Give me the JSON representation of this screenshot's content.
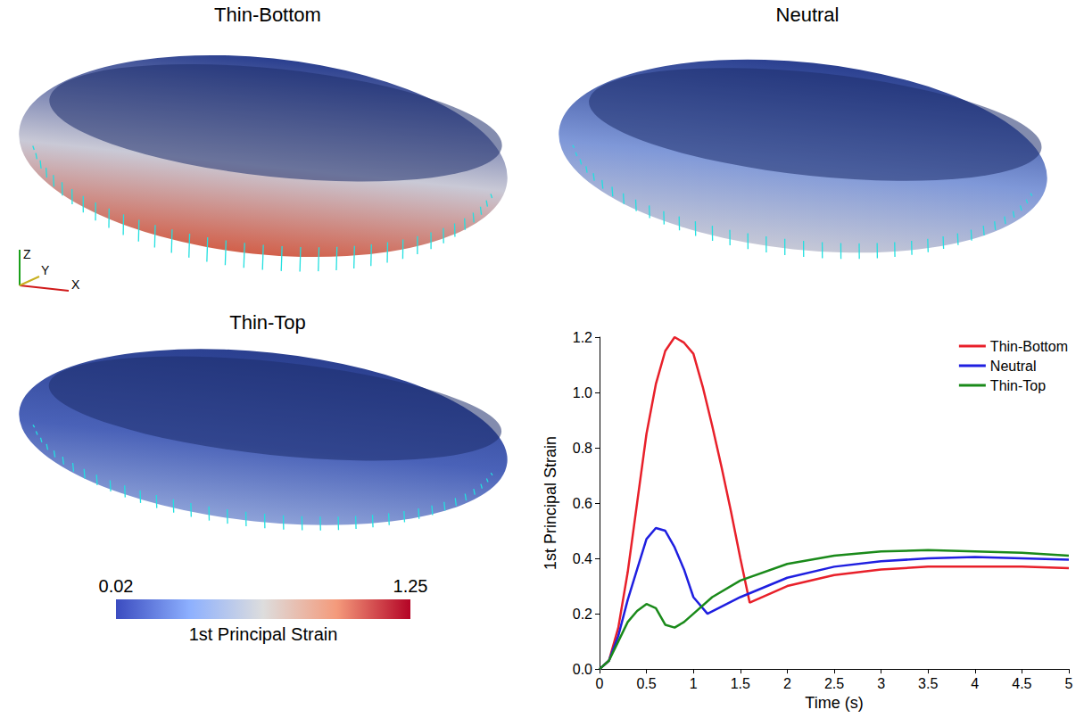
{
  "panels": [
    {
      "title": "Thin-Bottom"
    },
    {
      "title": "Neutral"
    },
    {
      "title": "Thin-Top"
    }
  ],
  "axes_triad": [
    "Z",
    "Y",
    "X"
  ],
  "colorbar": {
    "label": "1st Principal Strain",
    "range": [
      0.02,
      1.25
    ]
  },
  "chart_data": {
    "type": "line",
    "x_label": "Time (s)",
    "y_label": "1st Principal Strain",
    "xlim": [
      0,
      5
    ],
    "xticks": [
      0,
      0.5,
      1,
      1.5,
      2,
      2.5,
      3,
      3.5,
      4,
      4.5,
      5
    ],
    "ylim": [
      0,
      1.2
    ],
    "yticks": [
      {
        "value": 0,
        "label": "0.0"
      },
      {
        "value": 0.2,
        "label": "0.2"
      },
      {
        "value": 0.4,
        "label": "0.4"
      },
      {
        "value": 0.6,
        "label": "0.6"
      },
      {
        "value": 0.8,
        "label": "0.8"
      },
      {
        "value": 1.0,
        "label": "1.0"
      },
      {
        "value": 1.2,
        "label": "1.2"
      }
    ],
    "grid": false,
    "legend": "top-right",
    "series": [
      {
        "name": "Thin-Bottom",
        "color": "#e8202a",
        "x": [
          0,
          0.1,
          0.2,
          0.3,
          0.4,
          0.5,
          0.6,
          0.7,
          0.8,
          0.9,
          1.0,
          1.1,
          1.2,
          1.3,
          1.4,
          1.5,
          1.6,
          1.8,
          2,
          2.5,
          3,
          3.5,
          4,
          4.5,
          5
        ],
        "values": [
          0,
          0.03,
          0.15,
          0.35,
          0.6,
          0.85,
          1.03,
          1.15,
          1.2,
          1.18,
          1.14,
          1.02,
          0.88,
          0.73,
          0.57,
          0.4,
          0.24,
          0.27,
          0.3,
          0.34,
          0.36,
          0.37,
          0.37,
          0.37,
          0.365
        ]
      },
      {
        "name": "Neutral",
        "color": "#1f1fe0",
        "x": [
          0,
          0.1,
          0.2,
          0.3,
          0.4,
          0.5,
          0.6,
          0.7,
          0.8,
          0.9,
          1.0,
          1.15,
          1.5,
          2,
          2.5,
          3,
          3.5,
          4,
          4.5,
          5
        ],
        "values": [
          0,
          0.03,
          0.12,
          0.25,
          0.36,
          0.47,
          0.51,
          0.5,
          0.44,
          0.36,
          0.26,
          0.2,
          0.26,
          0.33,
          0.37,
          0.39,
          0.4,
          0.405,
          0.4,
          0.395
        ]
      },
      {
        "name": "Thin-Top",
        "color": "#1a8a1a",
        "x": [
          0,
          0.1,
          0.2,
          0.3,
          0.4,
          0.5,
          0.6,
          0.7,
          0.8,
          0.9,
          1.0,
          1.2,
          1.5,
          2,
          2.5,
          3,
          3.5,
          4,
          4.5,
          5
        ],
        "values": [
          0,
          0.03,
          0.1,
          0.17,
          0.21,
          0.235,
          0.22,
          0.16,
          0.15,
          0.17,
          0.2,
          0.26,
          0.32,
          0.38,
          0.41,
          0.425,
          0.43,
          0.425,
          0.42,
          0.41
        ]
      }
    ]
  }
}
